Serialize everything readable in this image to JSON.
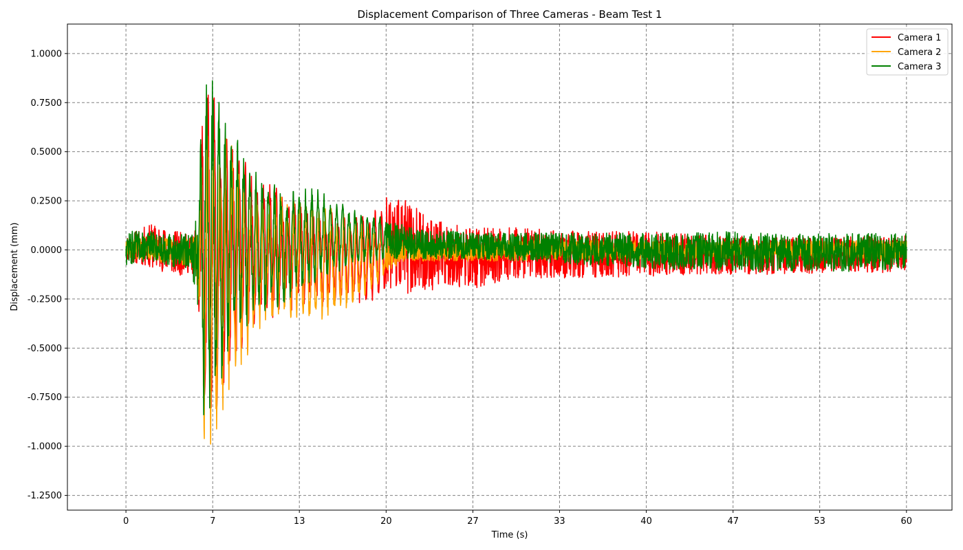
{
  "chart_data": {
    "type": "line",
    "title": "Displacement Comparison of Three Cameras - Beam Test 1",
    "xlabel": "Time (s)",
    "ylabel": "Displacement (mm)",
    "xlim": [
      -4.5,
      63.5
    ],
    "ylim": [
      -1.325,
      1.15
    ],
    "x_ticks": [
      0,
      6.67,
      13.33,
      20,
      26.67,
      33.33,
      40,
      46.67,
      53.33,
      60
    ],
    "x_tick_labels": [
      "0",
      "7",
      "13",
      "20",
      "27",
      "33",
      "40",
      "47",
      "53",
      "60"
    ],
    "y_ticks": [
      1.0,
      0.75,
      0.5,
      0.25,
      0.0,
      -0.25,
      -0.5,
      -0.75,
      -1.0,
      -1.25
    ],
    "y_tick_labels": [
      "1.0000",
      "0.7500",
      "0.5000",
      "0.2500",
      "0.0000",
      "-0.2500",
      "-0.5000",
      "-0.7500",
      "-1.0000",
      "-1.2500"
    ],
    "grid": true,
    "legend_position": "top-right",
    "series": [
      {
        "name": "Camera 1",
        "color": "#ff0000",
        "envelope": {
          "t": [
            0,
            2,
            4,
            5,
            5.5,
            6,
            7,
            8,
            9,
            10,
            12,
            14,
            16,
            18,
            19.5,
            20,
            21,
            22,
            23,
            25,
            27,
            30,
            35,
            40,
            45,
            50,
            55,
            60
          ],
          "upper": [
            0.08,
            0.14,
            0.1,
            0.08,
            0.12,
            0.9,
            0.78,
            0.58,
            0.5,
            0.4,
            0.3,
            0.22,
            0.2,
            0.18,
            0.22,
            0.3,
            0.28,
            0.25,
            0.18,
            0.14,
            0.12,
            0.12,
            0.1,
            0.1,
            0.08,
            0.07,
            0.07,
            0.08
          ],
          "lower": [
            -0.06,
            -0.1,
            -0.14,
            -0.12,
            -0.2,
            -0.95,
            -0.9,
            -0.65,
            -0.5,
            -0.42,
            -0.33,
            -0.3,
            -0.3,
            -0.28,
            -0.26,
            -0.2,
            -0.22,
            -0.25,
            -0.22,
            -0.2,
            -0.2,
            -0.15,
            -0.15,
            -0.14,
            -0.13,
            -0.13,
            -0.12,
            -0.12
          ]
        }
      },
      {
        "name": "Camera 2",
        "color": "#ffa500",
        "envelope": {
          "t": [
            0,
            2,
            4,
            5,
            5.5,
            6,
            7,
            8,
            9,
            10,
            12,
            14,
            16,
            18,
            19.5,
            20,
            21,
            22,
            23,
            25,
            27,
            30,
            35,
            40,
            45,
            50,
            55,
            60
          ],
          "upper": [
            0.05,
            0.08,
            0.06,
            0.06,
            0.1,
            0.88,
            0.72,
            0.62,
            0.45,
            0.3,
            0.3,
            0.26,
            0.22,
            0.16,
            0.12,
            0.08,
            0.06,
            0.05,
            0.05,
            0.05,
            0.05,
            0.05,
            0.05,
            0.05,
            0.05,
            0.05,
            0.05,
            0.05
          ],
          "lower": [
            -0.04,
            -0.06,
            -0.08,
            -0.08,
            -0.2,
            -1.21,
            -0.93,
            -0.7,
            -0.64,
            -0.45,
            -0.35,
            -0.36,
            -0.35,
            -0.28,
            -0.18,
            -0.12,
            -0.08,
            -0.06,
            -0.06,
            -0.06,
            -0.06,
            -0.06,
            -0.05,
            -0.05,
            -0.05,
            -0.05,
            -0.05,
            -0.05
          ]
        }
      },
      {
        "name": "Camera 3",
        "color": "#008000",
        "envelope": {
          "t": [
            0,
            2,
            4,
            5,
            5.5,
            6,
            7,
            8,
            9,
            10,
            12,
            14,
            16,
            18,
            19.5,
            20,
            21,
            22,
            23,
            25,
            27,
            30,
            35,
            40,
            45,
            50,
            55,
            60
          ],
          "upper": [
            0.1,
            0.1,
            0.08,
            0.1,
            0.2,
            1.05,
            0.85,
            0.62,
            0.55,
            0.42,
            0.32,
            0.34,
            0.26,
            0.2,
            0.18,
            0.16,
            0.14,
            0.12,
            0.1,
            0.1,
            0.09,
            0.09,
            0.09,
            0.09,
            0.1,
            0.09,
            0.09,
            0.09
          ],
          "lower": [
            -0.08,
            -0.06,
            -0.1,
            -0.1,
            -0.3,
            -0.95,
            -0.75,
            -0.52,
            -0.42,
            -0.35,
            -0.3,
            -0.2,
            -0.12,
            -0.08,
            -0.06,
            -0.05,
            -0.05,
            -0.05,
            -0.05,
            -0.05,
            -0.05,
            -0.06,
            -0.08,
            -0.1,
            -0.11,
            -0.12,
            -0.12,
            -0.1
          ]
        }
      }
    ]
  }
}
